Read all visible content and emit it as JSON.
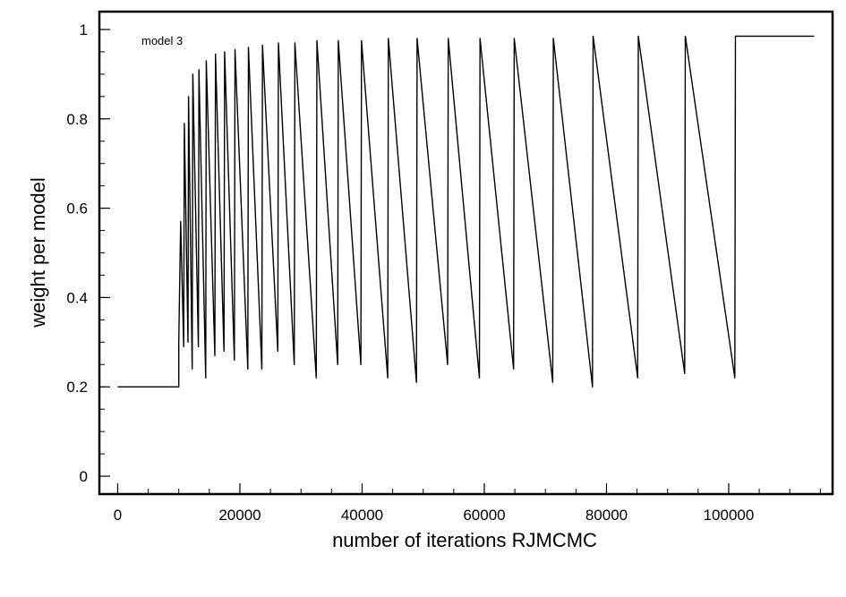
{
  "chart_data": {
    "type": "line",
    "title": "",
    "xlabel": "number of iterations RJMCMC",
    "ylabel": "weight per model",
    "annotation": "model 3",
    "xlim": [
      -3000,
      117000
    ],
    "ylim": [
      -0.04,
      1.04
    ],
    "xticks": [
      0,
      20000,
      40000,
      60000,
      80000,
      100000
    ],
    "yticks": [
      0,
      0.2,
      0.4,
      0.6,
      0.8,
      1
    ],
    "xticks_minor_step": 5000,
    "yticks_minor_step": 0.05,
    "grid": false,
    "legend": "none",
    "line_color": "#000000",
    "series": [
      {
        "x": [
          0,
          10000,
          10000,
          10300,
          10800,
          10900,
          11500,
          11600,
          12200,
          12300,
          13200,
          13300,
          14400,
          14500,
          15900,
          16000,
          17400,
          17500,
          19100,
          19200,
          21300,
          21400,
          23600,
          23700,
          26200,
          26300,
          28900,
          29000,
          32500,
          32600,
          36000,
          36100,
          39800,
          39900,
          44200,
          44300,
          48900,
          49000,
          54000,
          54100,
          59200,
          59300,
          64800,
          64900,
          71200,
          71300,
          77700,
          77800,
          85100,
          85200,
          92800,
          92900,
          101000,
          101100,
          109000,
          114000
        ],
        "y": [
          0.2,
          0.2,
          0.3,
          0.57,
          0.29,
          0.79,
          0.3,
          0.85,
          0.24,
          0.9,
          0.29,
          0.91,
          0.22,
          0.93,
          0.27,
          0.945,
          0.28,
          0.95,
          0.26,
          0.955,
          0.24,
          0.96,
          0.24,
          0.965,
          0.28,
          0.97,
          0.25,
          0.97,
          0.22,
          0.975,
          0.25,
          0.975,
          0.25,
          0.975,
          0.22,
          0.98,
          0.21,
          0.98,
          0.25,
          0.98,
          0.22,
          0.98,
          0.24,
          0.98,
          0.21,
          0.98,
          0.2,
          0.985,
          0.22,
          0.985,
          0.23,
          0.985,
          0.22,
          0.985,
          0.985,
          0.985
        ]
      }
    ]
  }
}
